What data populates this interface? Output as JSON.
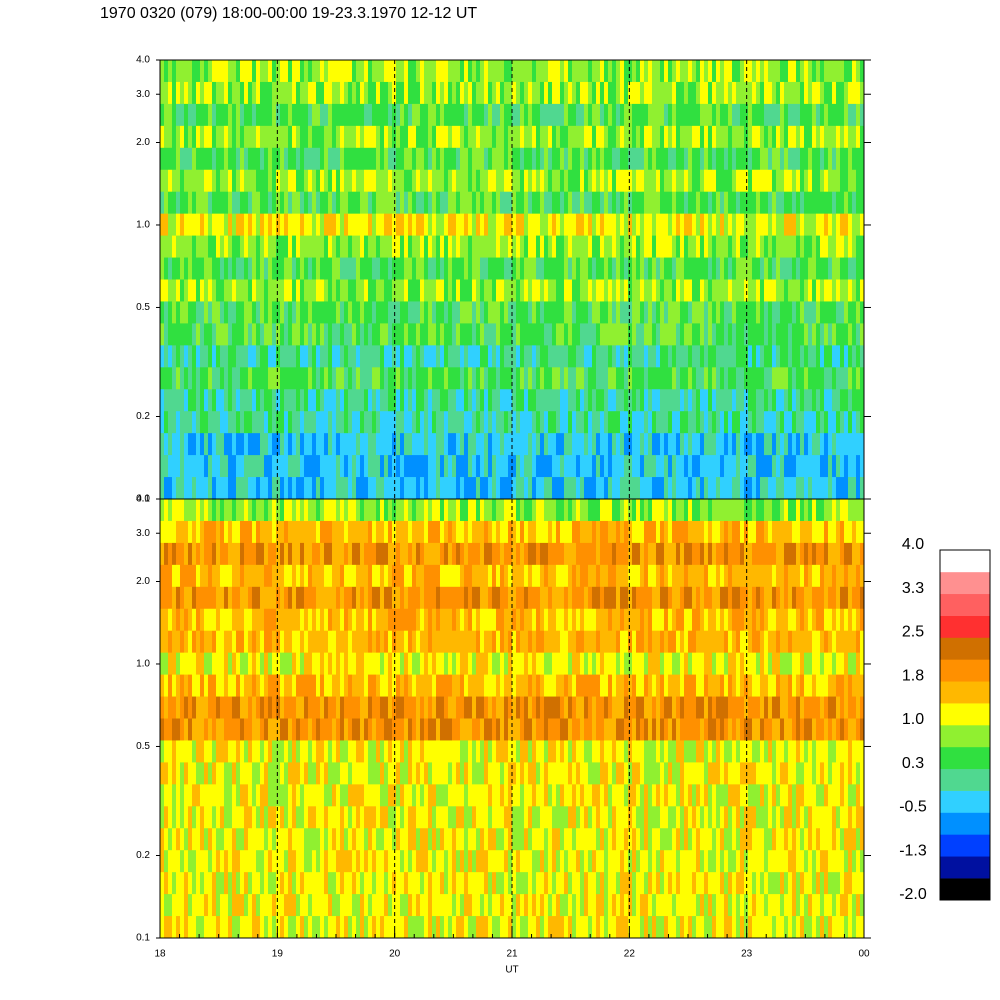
{
  "chart_data": {
    "type": "spectrogram",
    "title": "1970 0320 (079) 18:00-00:00 19-23.3.1970  12-12 UT",
    "xlabel": "UT",
    "xlim": [
      18,
      24
    ],
    "xticks": [
      18,
      19,
      20,
      21,
      22,
      23,
      {
        "value": 24,
        "label": "00"
      }
    ],
    "grid_x": [
      19,
      20,
      21,
      22,
      23
    ],
    "log_y": true,
    "panels": [
      {
        "ylim": [
          0.1,
          4.0
        ],
        "yticks": [
          {
            "value": 0.1,
            "label": "0.1"
          },
          0.2,
          0.5,
          {
            "value": 1.0,
            "label": "1.0"
          },
          {
            "value": 2.0,
            "label": "2.0"
          },
          {
            "value": 3.0,
            "label": "3.0"
          },
          {
            "value": 4.0,
            "label": "4.0"
          }
        ]
      },
      {
        "ylim": [
          0.1,
          4.0
        ],
        "yticks": [
          {
            "value": 0.1,
            "label": "0.1"
          },
          0.2,
          0.5,
          {
            "value": 1.0,
            "label": "1.0"
          },
          {
            "value": 2.0,
            "label": "2.0"
          },
          {
            "value": 3.0,
            "label": "3.0"
          },
          {
            "value": 4.0,
            "label": "4.0"
          }
        ]
      }
    ],
    "colorbar": {
      "lim": [
        -2.0,
        4.0
      ],
      "ticks": [
        {
          "value": 4.0,
          "label": "4.0"
        },
        {
          "value": 3.25,
          "label": "3.3"
        },
        {
          "value": 2.5,
          "label": "2.5"
        },
        {
          "value": 1.75,
          "label": "1.8"
        },
        {
          "value": 1.0,
          "label": "1.0"
        },
        {
          "value": 0.25,
          "label": "0.3"
        },
        {
          "value": -0.5,
          "label": "-0.5"
        },
        {
          "value": -1.25,
          "label": "-1.3"
        },
        {
          "value": -2.0,
          "label": "-2.0"
        }
      ],
      "colors": [
        "#000000",
        "#0010a0",
        "#0040ff",
        "#0090ff",
        "#30d0ff",
        "#50d890",
        "#30e040",
        "#90f030",
        "#ffff00",
        "#ffb800",
        "#ff9000",
        "#d07000",
        "#ff3030",
        "#ff6060",
        "#ff9090",
        "#ffffff"
      ]
    }
  }
}
